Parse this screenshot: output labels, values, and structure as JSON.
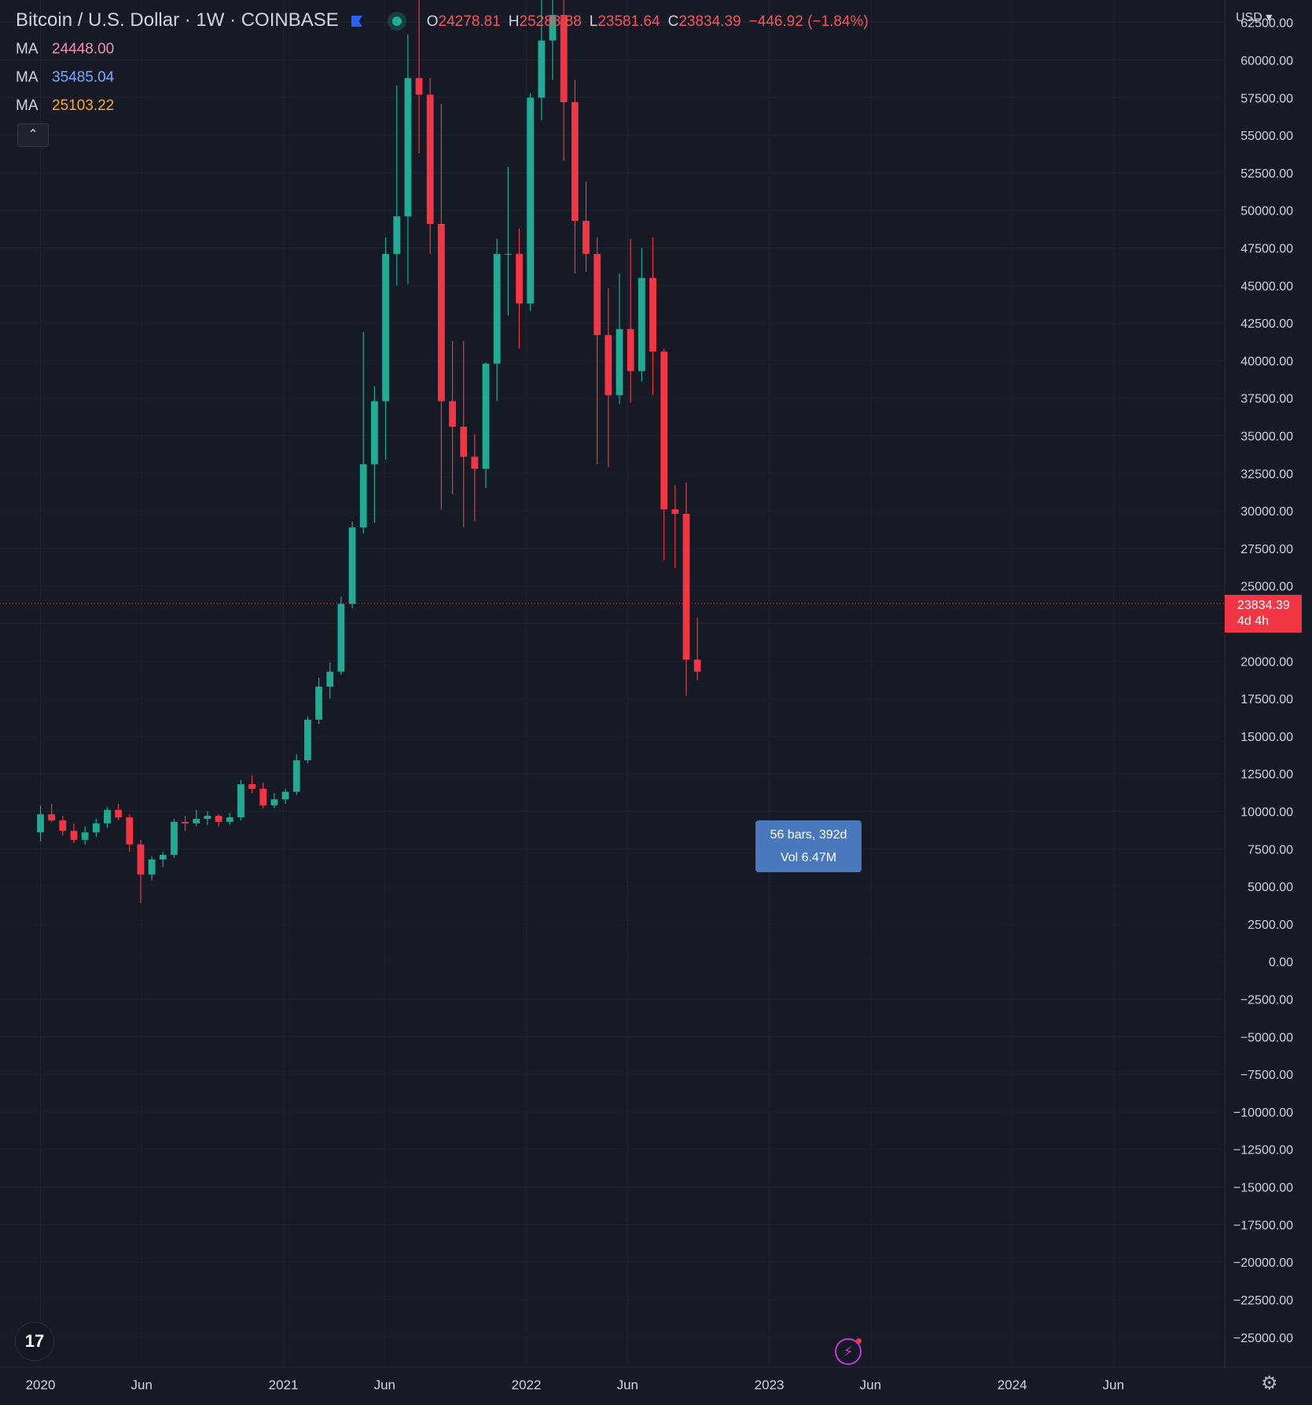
{
  "header": {
    "symbol": "Bitcoin / U.S. Dollar · 1W · COINBASE",
    "ohlc": {
      "o_label": "O",
      "o": "24278.81",
      "h_label": "H",
      "h": "25288.88",
      "l_label": "L",
      "l": "23581.64",
      "c_label": "C",
      "c": "23834.39",
      "change": "−446.92 (−1.84%)"
    }
  },
  "indicators": [
    {
      "label": "MA",
      "value": "24448.00",
      "color": "#f48fb1"
    },
    {
      "label": "MA",
      "value": "35485.04",
      "color": "#7aa9ff"
    },
    {
      "label": "MA",
      "value": "25103.22",
      "color": "#ffa726"
    }
  ],
  "collapse_icon": "chevron-up-icon",
  "currency_label": "USD ▾",
  "last_price": {
    "value": "23834.39",
    "countdown": "4d 4h",
    "color": "#f23645"
  },
  "measure": {
    "line1": "56 bars, 392d",
    "line2": "Vol 6.47M"
  },
  "tv_logo": "17",
  "colors": {
    "up": "#22ab94",
    "down": "#f23645",
    "bg": "#161a25",
    "grid": "#1f2331"
  },
  "chart_data": {
    "type": "candlestick",
    "yaxis_ticks": [
      "62500.00",
      "60000.00",
      "57500.00",
      "55000.00",
      "52500.00",
      "50000.00",
      "47500.00",
      "45000.00",
      "42500.00",
      "40000.00",
      "37500.00",
      "35000.00",
      "32500.00",
      "30000.00",
      "27500.00",
      "25000.00",
      "22500.00",
      "20000.00",
      "17500.00",
      "15000.00",
      "12500.00",
      "10000.00",
      "7500.00",
      "5000.00",
      "2500.00",
      "0.00",
      "−2500.00",
      "−5000.00",
      "−7500.00",
      "−10000.00",
      "−12500.00",
      "−15000.00",
      "−17500.00",
      "−20000.00",
      "−22500.00",
      "−25000.00"
    ],
    "ylim": [
      -27000,
      64000
    ],
    "xaxis_labels": [
      {
        "label": "2020",
        "t": 0
      },
      {
        "label": "Jun",
        "t": 5
      },
      {
        "label": "2021",
        "t": 12
      },
      {
        "label": "Jun",
        "t": 17
      },
      {
        "label": "2022",
        "t": 24
      },
      {
        "label": "Jun",
        "t": 29
      },
      {
        "label": "2023",
        "t": 36
      },
      {
        "label": "Jun",
        "t": 41
      },
      {
        "label": "2024",
        "t": 48
      },
      {
        "label": "Jun",
        "t": 53
      }
    ],
    "xlim": [
      -2,
      58.5
    ],
    "candles": [
      [
        8600,
        10400,
        8000,
        9800
      ],
      [
        9800,
        10500,
        9300,
        9400
      ],
      [
        9400,
        9700,
        8400,
        8700
      ],
      [
        8700,
        9200,
        7900,
        8100
      ],
      [
        8100,
        9000,
        7800,
        8600
      ],
      [
        8600,
        9500,
        8300,
        9200
      ],
      [
        9200,
        10300,
        8900,
        10100
      ],
      [
        10100,
        10500,
        9400,
        9600
      ],
      [
        9600,
        9800,
        7300,
        7800
      ],
      [
        7800,
        8100,
        3900,
        5800
      ],
      [
        5800,
        7000,
        5400,
        6800
      ],
      [
        6800,
        7300,
        6300,
        7100
      ],
      [
        7100,
        9500,
        6900,
        9300
      ],
      [
        9300,
        9700,
        8700,
        9200
      ],
      [
        9200,
        10100,
        9000,
        9500
      ],
      [
        9500,
        10000,
        9100,
        9700
      ],
      [
        9700,
        9800,
        9000,
        9300
      ],
      [
        9300,
        9900,
        9100,
        9600
      ],
      [
        9600,
        12100,
        9400,
        11800
      ],
      [
        11800,
        12400,
        11200,
        11500
      ],
      [
        11500,
        11900,
        10200,
        10400
      ],
      [
        10400,
        11200,
        10200,
        10800
      ],
      [
        10800,
        11500,
        10500,
        11300
      ],
      [
        11300,
        13800,
        11100,
        13400
      ],
      [
        13400,
        16300,
        13200,
        16100
      ],
      [
        16100,
        18900,
        15800,
        18300
      ],
      [
        18300,
        19900,
        17500,
        19300
      ],
      [
        19300,
        24300,
        19100,
        23800
      ],
      [
        23800,
        29300,
        23500,
        28900
      ],
      [
        28900,
        41900,
        28500,
        33100
      ],
      [
        33100,
        38300,
        29200,
        37300
      ],
      [
        37300,
        48200,
        33400,
        47100
      ],
      [
        47100,
        58300,
        45000,
        49600
      ],
      [
        49600,
        61700,
        45100,
        58800
      ],
      [
        58800,
        64800,
        53800,
        57700
      ],
      [
        57700,
        58800,
        47100,
        49100
      ],
      [
        49100,
        57100,
        30100,
        37300
      ],
      [
        37300,
        41300,
        31100,
        35600
      ],
      [
        35600,
        41300,
        28900,
        33600
      ],
      [
        33600,
        35100,
        29300,
        32800
      ],
      [
        32800,
        39900,
        31500,
        39800
      ],
      [
        39800,
        48100,
        37300,
        47100
      ],
      [
        47100,
        52900,
        43000,
        47100
      ],
      [
        47100,
        48800,
        40800,
        43800
      ],
      [
        43800,
        57800,
        43300,
        57500
      ],
      [
        57500,
        66900,
        56000,
        61300
      ],
      [
        61300,
        69000,
        58700,
        63000
      ],
      [
        63000,
        65300,
        53300,
        57200
      ],
      [
        57200,
        58700,
        45800,
        49300
      ],
      [
        49300,
        51900,
        45900,
        47100
      ],
      [
        47100,
        48200,
        33100,
        41700
      ],
      [
        41700,
        44800,
        32900,
        37700
      ],
      [
        37700,
        45800,
        37100,
        42100
      ],
      [
        42100,
        48100,
        37200,
        39300
      ],
      [
        39300,
        47500,
        38600,
        45500
      ],
      [
        45500,
        48200,
        37700,
        40600
      ],
      [
        40600,
        40800,
        26700,
        30100
      ],
      [
        30100,
        31700,
        26200,
        29800
      ],
      [
        29800,
        31900,
        17700,
        20100
      ],
      [
        20100,
        22900,
        18700,
        19300
      ]
    ]
  }
}
